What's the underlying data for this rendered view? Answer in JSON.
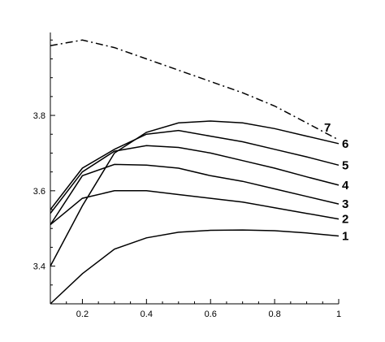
{
  "chart_data": {
    "type": "line",
    "title": "",
    "xlabel": "",
    "ylabel": "",
    "xlim": [
      0.1,
      1.0
    ],
    "ylim": [
      3.3,
      4.02
    ],
    "grid": false,
    "x_major_ticks": [
      0.2,
      0.4,
      0.6,
      0.8,
      1.0
    ],
    "x_tick_labels": [
      "0.2",
      "0.4",
      "0.6",
      "0.8",
      "1"
    ],
    "y_major_ticks": [
      3.4,
      3.6,
      3.8
    ],
    "y_tick_labels": [
      "3.4",
      "3.6",
      "3.8"
    ],
    "series": [
      {
        "name": "1",
        "style": "solid",
        "points": [
          [
            0.1,
            3.3
          ],
          [
            0.2,
            3.38
          ],
          [
            0.3,
            3.445
          ],
          [
            0.4,
            3.475
          ],
          [
            0.5,
            3.49
          ],
          [
            0.6,
            3.495
          ],
          [
            0.7,
            3.496
          ],
          [
            0.8,
            3.494
          ],
          [
            0.9,
            3.488
          ],
          [
            1.0,
            3.48
          ]
        ]
      },
      {
        "name": "2",
        "style": "solid",
        "points": [
          [
            0.1,
            3.51
          ],
          [
            0.2,
            3.58
          ],
          [
            0.3,
            3.6
          ],
          [
            0.4,
            3.6
          ],
          [
            0.5,
            3.59
          ],
          [
            0.6,
            3.58
          ],
          [
            0.7,
            3.57
          ],
          [
            0.8,
            3.555
          ],
          [
            0.9,
            3.54
          ],
          [
            1.0,
            3.525
          ]
        ]
      },
      {
        "name": "3",
        "style": "solid",
        "points": [
          [
            0.1,
            3.51
          ],
          [
            0.2,
            3.64
          ],
          [
            0.3,
            3.67
          ],
          [
            0.4,
            3.668
          ],
          [
            0.5,
            3.66
          ],
          [
            0.6,
            3.64
          ],
          [
            0.7,
            3.625
          ],
          [
            0.8,
            3.605
          ],
          [
            0.9,
            3.585
          ],
          [
            1.0,
            3.565
          ]
        ]
      },
      {
        "name": "4",
        "style": "solid",
        "points": [
          [
            0.1,
            3.54
          ],
          [
            0.2,
            3.65
          ],
          [
            0.3,
            3.705
          ],
          [
            0.4,
            3.72
          ],
          [
            0.5,
            3.715
          ],
          [
            0.6,
            3.7
          ],
          [
            0.7,
            3.68
          ],
          [
            0.8,
            3.66
          ],
          [
            0.9,
            3.637
          ],
          [
            1.0,
            3.615
          ]
        ]
      },
      {
        "name": "5",
        "style": "solid",
        "points": [
          [
            0.1,
            3.55
          ],
          [
            0.2,
            3.66
          ],
          [
            0.3,
            3.71
          ],
          [
            0.4,
            3.75
          ],
          [
            0.5,
            3.76
          ],
          [
            0.6,
            3.745
          ],
          [
            0.7,
            3.73
          ],
          [
            0.8,
            3.71
          ],
          [
            0.9,
            3.69
          ],
          [
            1.0,
            3.668
          ]
        ]
      },
      {
        "name": "6",
        "style": "solid",
        "points": [
          [
            0.1,
            3.4
          ],
          [
            0.2,
            3.56
          ],
          [
            0.3,
            3.7
          ],
          [
            0.4,
            3.755
          ],
          [
            0.5,
            3.78
          ],
          [
            0.6,
            3.785
          ],
          [
            0.7,
            3.78
          ],
          [
            0.8,
            3.765
          ],
          [
            0.9,
            3.745
          ],
          [
            1.0,
            3.725
          ]
        ]
      },
      {
        "name": "7",
        "style": "dash-dot",
        "points": [
          [
            0.1,
            3.985
          ],
          [
            0.2,
            4.0
          ],
          [
            0.3,
            3.98
          ],
          [
            0.4,
            3.95
          ],
          [
            0.5,
            3.92
          ],
          [
            0.6,
            3.89
          ],
          [
            0.7,
            3.86
          ],
          [
            0.8,
            3.825
          ],
          [
            0.9,
            3.78
          ],
          [
            1.0,
            3.735
          ]
        ]
      }
    ]
  }
}
